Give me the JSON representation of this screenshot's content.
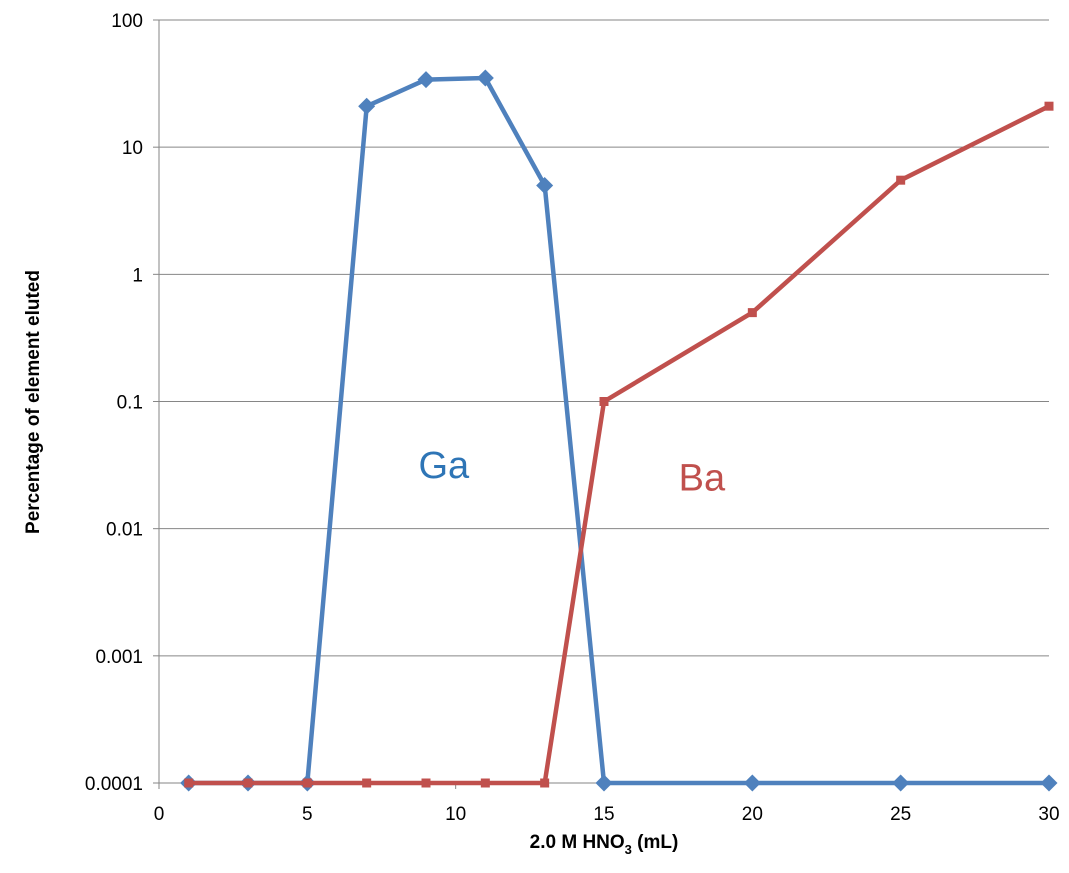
{
  "chart_data": {
    "type": "line",
    "xlabel_prefix": "2.0 M HNO",
    "xlabel_subscript": "3",
    "xlabel_suffix": " (mL)",
    "ylabel": "Percentage of element eluted",
    "xlim": [
      0,
      30
    ],
    "ylim": [
      0.0001,
      100
    ],
    "y_scale": "log",
    "x_ticks": [
      "0",
      "5",
      "10",
      "15",
      "20",
      "25",
      "30"
    ],
    "y_ticks": [
      "0.0001",
      "0.001",
      "0.01",
      "0.1",
      "1",
      "10",
      "100"
    ],
    "grid": "horizontal",
    "series": [
      {
        "name": "Ga",
        "color": "#4f81bd",
        "marker": "diamond",
        "x": [
          1,
          3,
          5,
          7,
          9,
          11,
          13,
          15,
          20,
          25,
          30
        ],
        "y": [
          0.0001,
          0.0001,
          0.0001,
          21,
          34,
          35,
          5,
          0.0001,
          0.0001,
          0.0001,
          0.0001
        ]
      },
      {
        "name": "Ba",
        "color": "#c0504d",
        "marker": "square",
        "x": [
          1,
          3,
          5,
          7,
          9,
          11,
          13,
          15,
          20,
          25,
          30
        ],
        "y": [
          0.0001,
          0.0001,
          0.0001,
          0.0001,
          0.0001,
          0.0001,
          0.0001,
          0.1,
          0.5,
          5.5,
          21
        ]
      }
    ],
    "annotations": [
      {
        "text": "Ga",
        "x": 9.6,
        "y": 0.025,
        "color": "#2e75b6"
      },
      {
        "text": "Ba",
        "x": 18.3,
        "y": 0.02,
        "color": "#c0504d"
      }
    ]
  }
}
